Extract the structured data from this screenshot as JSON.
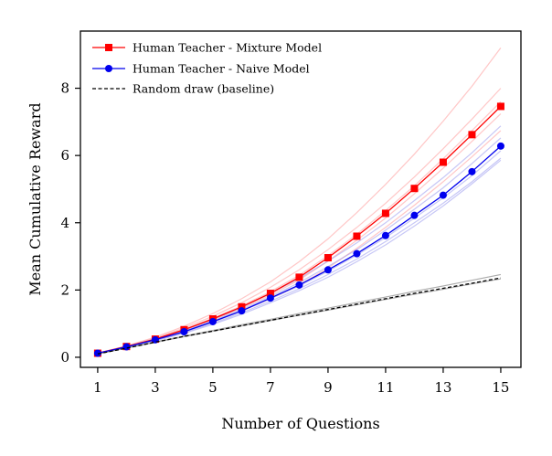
{
  "chart_data": {
    "type": "line",
    "xlabel": "Number of Questions",
    "ylabel": "Mean Cumulative Reward",
    "xlim": [
      0.4,
      15.7
    ],
    "ylim": [
      -0.3,
      9.7
    ],
    "xticks": [
      1,
      3,
      5,
      7,
      9,
      11,
      13,
      15
    ],
    "yticks": [
      0,
      2,
      4,
      6,
      8
    ],
    "grid": false,
    "legend": {
      "placement": "top-left"
    },
    "x": [
      1,
      2,
      3,
      4,
      5,
      6,
      7,
      8,
      9,
      10,
      11,
      12,
      13,
      14,
      15
    ],
    "series": [
      {
        "name": "Human Teacher - Mixture Model",
        "color": "#ff0000",
        "marker": "square",
        "values": [
          0.12,
          0.32,
          0.54,
          0.82,
          1.14,
          1.5,
          1.9,
          2.38,
          2.96,
          3.6,
          4.28,
          5.02,
          5.8,
          6.62,
          7.46
        ]
      },
      {
        "name": "Human Teacher - Naive Model",
        "color": "#0000ee",
        "marker": "circle",
        "values": [
          0.12,
          0.31,
          0.52,
          0.76,
          1.06,
          1.38,
          1.76,
          2.15,
          2.6,
          3.08,
          3.62,
          4.22,
          4.82,
          5.52,
          6.28
        ]
      },
      {
        "name": "Random draw (baseline)",
        "color": "#000000",
        "dashed": true,
        "values": [
          0.1,
          0.27,
          0.45,
          0.62,
          0.78,
          0.94,
          1.1,
          1.26,
          1.42,
          1.58,
          1.74,
          1.9,
          2.05,
          2.2,
          2.36
        ]
      }
    ],
    "faint_runs": [
      {
        "group": "mixture",
        "color": "#ff9999",
        "values": [
          0.12,
          0.34,
          0.6,
          0.92,
          1.3,
          1.74,
          2.24,
          2.84,
          3.52,
          4.3,
          5.14,
          6.04,
          7.02,
          8.06,
          9.2
        ]
      },
      {
        "group": "mixture",
        "color": "#ff9999",
        "values": [
          0.12,
          0.33,
          0.57,
          0.87,
          1.22,
          1.62,
          2.08,
          2.6,
          3.2,
          3.86,
          4.58,
          5.36,
          6.2,
          7.08,
          8.0
        ]
      },
      {
        "group": "mixture",
        "color": "#ff9999",
        "values": [
          0.12,
          0.32,
          0.55,
          0.83,
          1.16,
          1.53,
          1.95,
          2.44,
          3.02,
          3.66,
          4.36,
          5.1,
          5.9,
          6.74,
          7.6
        ]
      },
      {
        "group": "mixture",
        "color": "#ff9999",
        "values": [
          0.12,
          0.31,
          0.53,
          0.8,
          1.11,
          1.46,
          1.85,
          2.3,
          2.86,
          3.48,
          4.14,
          4.86,
          5.62,
          6.42,
          7.24
        ]
      },
      {
        "group": "mixture",
        "color": "#ff9999",
        "values": [
          0.12,
          0.3,
          0.51,
          0.76,
          1.05,
          1.38,
          1.74,
          2.14,
          2.66,
          3.24,
          3.86,
          4.52,
          5.22,
          5.96,
          6.74
        ]
      },
      {
        "group": "naive",
        "color": "#9999ee",
        "values": [
          0.12,
          0.32,
          0.55,
          0.81,
          1.13,
          1.48,
          1.9,
          2.34,
          2.86,
          3.4,
          4.0,
          4.66,
          5.34,
          6.08,
          6.88
        ]
      },
      {
        "group": "naive",
        "color": "#9999ee",
        "values": [
          0.12,
          0.31,
          0.53,
          0.78,
          1.08,
          1.42,
          1.8,
          2.22,
          2.7,
          3.2,
          3.78,
          4.4,
          5.04,
          5.76,
          6.52
        ]
      },
      {
        "group": "naive",
        "color": "#9999ee",
        "values": [
          0.12,
          0.31,
          0.52,
          0.76,
          1.05,
          1.37,
          1.74,
          2.12,
          2.56,
          3.04,
          3.56,
          4.14,
          4.74,
          5.4,
          6.14
        ]
      },
      {
        "group": "naive",
        "color": "#9999ee",
        "values": [
          0.12,
          0.3,
          0.5,
          0.73,
          1.01,
          1.32,
          1.67,
          2.04,
          2.46,
          2.92,
          3.44,
          4.0,
          4.58,
          5.22,
          5.92
        ]
      },
      {
        "group": "naive",
        "color": "#9999ee",
        "values": [
          0.12,
          0.3,
          0.49,
          0.71,
          0.98,
          1.28,
          1.62,
          1.98,
          2.38,
          2.84,
          3.34,
          3.9,
          4.5,
          5.16,
          5.86
        ]
      },
      {
        "group": "random",
        "color": "#888888",
        "values": [
          0.1,
          0.28,
          0.46,
          0.63,
          0.8,
          0.97,
          1.13,
          1.3,
          1.46,
          1.63,
          1.79,
          1.96,
          2.12,
          2.29,
          2.46
        ]
      },
      {
        "group": "random",
        "color": "#888888",
        "values": [
          0.1,
          0.27,
          0.44,
          0.61,
          0.77,
          0.93,
          1.09,
          1.25,
          1.4,
          1.56,
          1.72,
          1.87,
          2.02,
          2.18,
          2.33
        ]
      }
    ]
  }
}
